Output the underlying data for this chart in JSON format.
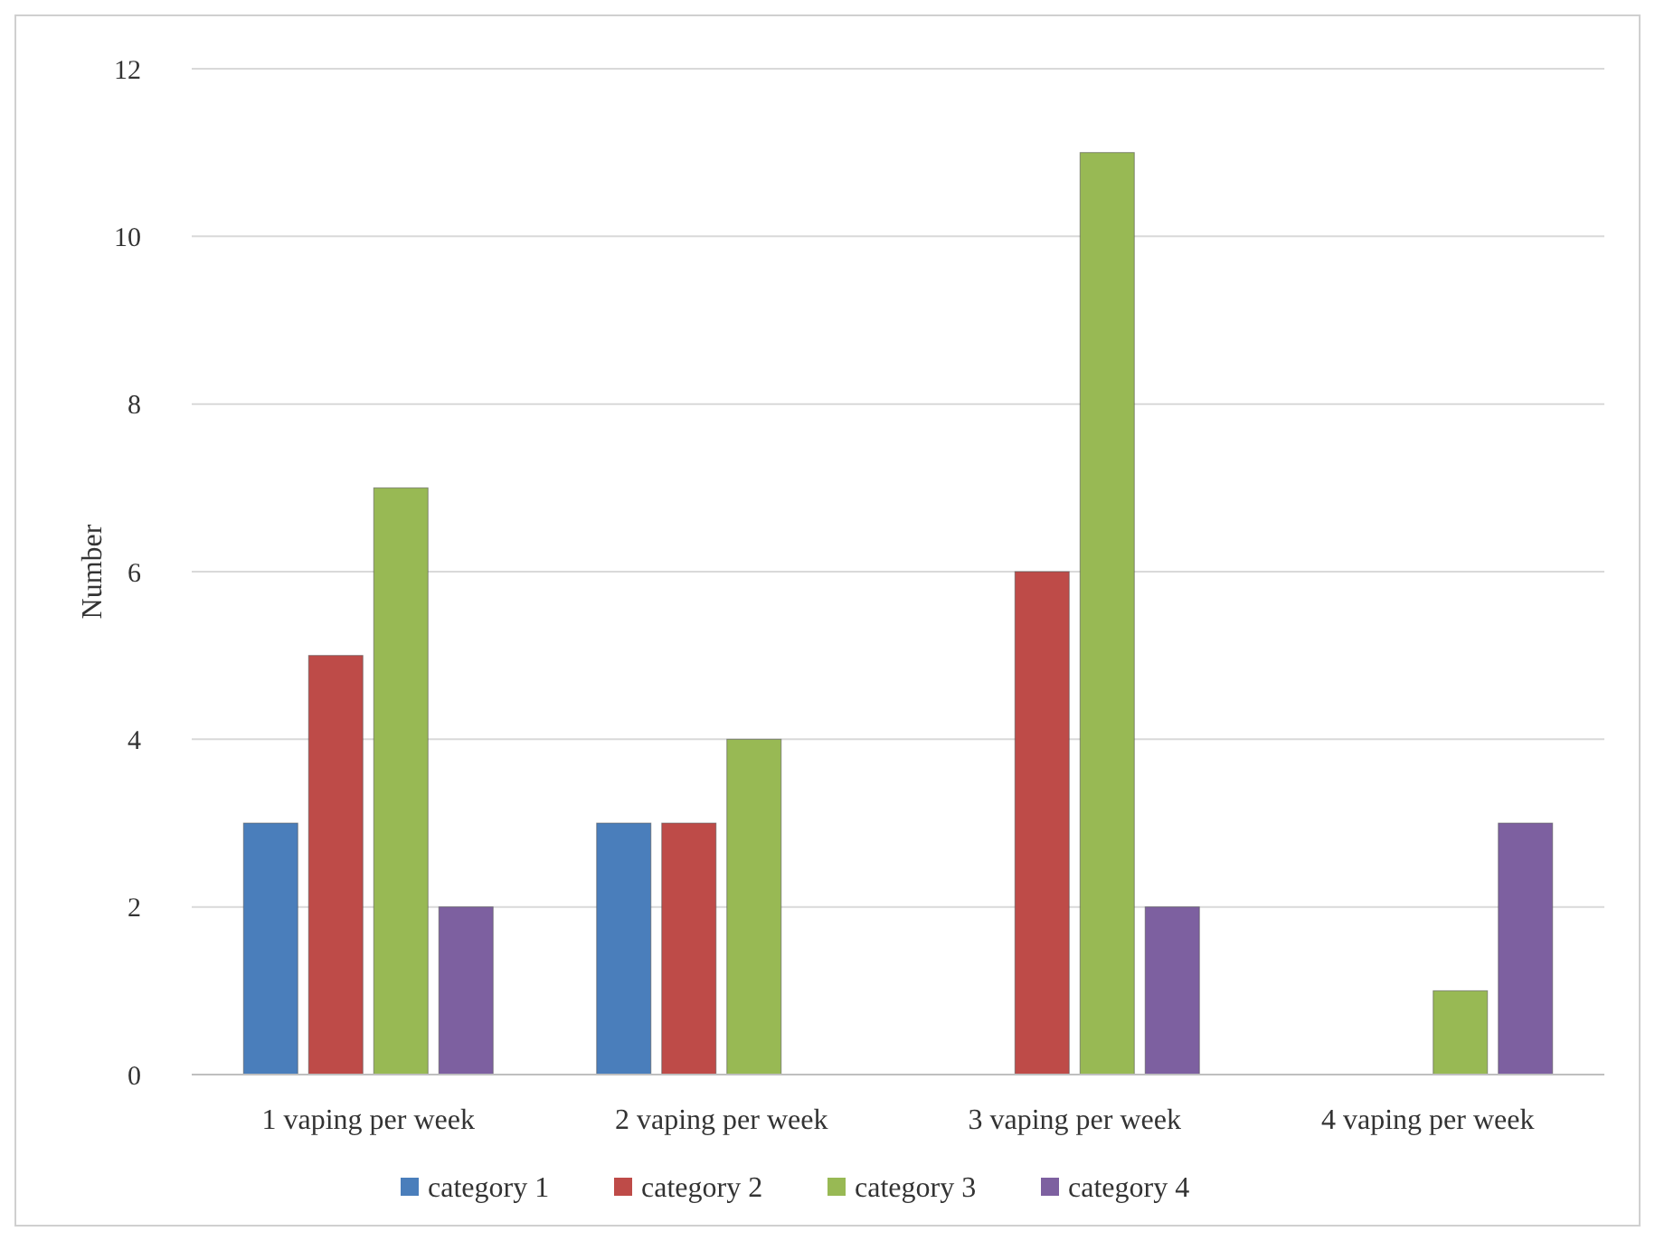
{
  "chart_data": {
    "type": "bar",
    "ylabel": "Number",
    "categories": [
      "1 vaping per week",
      "2 vaping per week",
      "3 vaping per week",
      "4 vaping per week"
    ],
    "series": [
      {
        "name": "category 1",
        "color": "#4a7ebb",
        "values": [
          3,
          3,
          0,
          0
        ]
      },
      {
        "name": "category 2",
        "color": "#be4b48",
        "values": [
          5,
          3,
          6,
          0
        ]
      },
      {
        "name": "category 3",
        "color": "#98b954",
        "values": [
          7,
          4,
          11,
          1
        ]
      },
      {
        "name": "category 4",
        "color": "#7d60a0",
        "values": [
          2,
          0,
          2,
          3
        ]
      }
    ],
    "ylim": [
      0,
      12
    ],
    "yticks": [
      0,
      2,
      4,
      6,
      8,
      10,
      12
    ],
    "grid": "y",
    "legend": "bottom"
  }
}
